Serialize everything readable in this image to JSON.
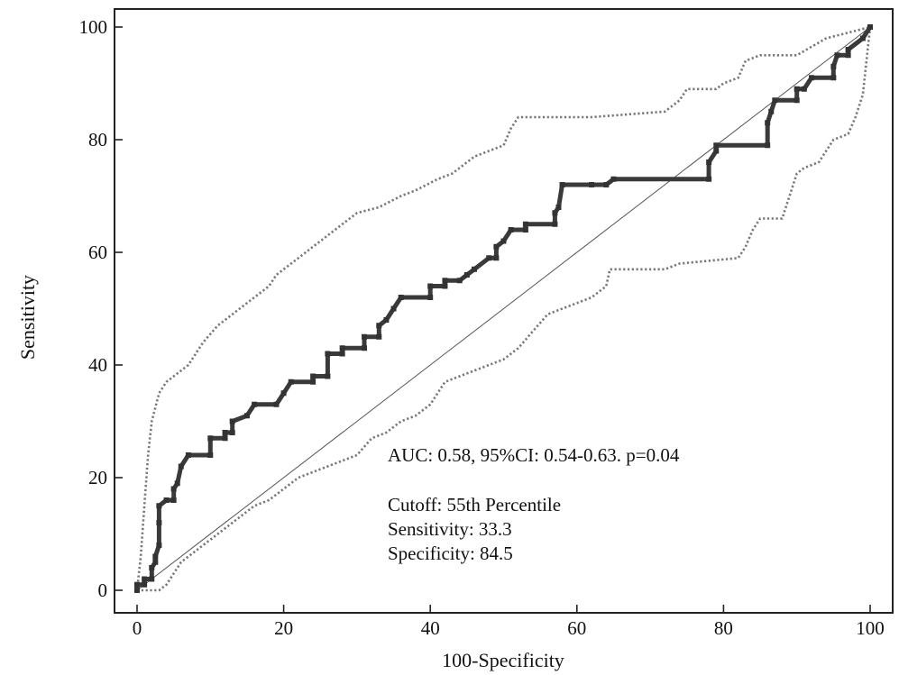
{
  "chart_data": {
    "type": "line",
    "title": "",
    "xlabel": "100-Specificity",
    "ylabel": "Sensitivity",
    "xlim": [
      0,
      100
    ],
    "ylim": [
      0,
      100
    ],
    "xticks": [
      "0",
      "20",
      "40",
      "60",
      "80",
      "100"
    ],
    "yticks": [
      "0",
      "20",
      "40",
      "60",
      "80",
      "100"
    ],
    "grid": false,
    "annotations": {
      "auc": "AUC: 0.58, 95%CI: 0.54-0.63. p=0.04",
      "cutoff": "Cutoff: 55th Percentile",
      "sensitivity": "Sensitivity: 33.3",
      "specificity": "Specificity: 84.5"
    },
    "series": [
      {
        "role": "roc",
        "style": "solid-thick",
        "points": [
          [
            0,
            0
          ],
          [
            0,
            1
          ],
          [
            1,
            1
          ],
          [
            1,
            2
          ],
          [
            2,
            2
          ],
          [
            2,
            4
          ],
          [
            2.5,
            5
          ],
          [
            2.5,
            6
          ],
          [
            3,
            8
          ],
          [
            3,
            12
          ],
          [
            3,
            15
          ],
          [
            4,
            16
          ],
          [
            5,
            16
          ],
          [
            5,
            18
          ],
          [
            5.5,
            19
          ],
          [
            6,
            22
          ],
          [
            7,
            24
          ],
          [
            10,
            24
          ],
          [
            10,
            27
          ],
          [
            12,
            27
          ],
          [
            12,
            28
          ],
          [
            13,
            28
          ],
          [
            13,
            30
          ],
          [
            15,
            31
          ],
          [
            16,
            33
          ],
          [
            19,
            33
          ],
          [
            20,
            35
          ],
          [
            21,
            37
          ],
          [
            24,
            37
          ],
          [
            24,
            38
          ],
          [
            26,
            38
          ],
          [
            26,
            42
          ],
          [
            28,
            42
          ],
          [
            28,
            43
          ],
          [
            31,
            43
          ],
          [
            31,
            45
          ],
          [
            33,
            45
          ],
          [
            33,
            47
          ],
          [
            34,
            48
          ],
          [
            35,
            50
          ],
          [
            36,
            52
          ],
          [
            40,
            52
          ],
          [
            40,
            54
          ],
          [
            42,
            54
          ],
          [
            42,
            55
          ],
          [
            44,
            55
          ],
          [
            45,
            56
          ],
          [
            46,
            57
          ],
          [
            48,
            59
          ],
          [
            49,
            59
          ],
          [
            49,
            61
          ],
          [
            50,
            62
          ],
          [
            51,
            64
          ],
          [
            53,
            64
          ],
          [
            53,
            65
          ],
          [
            57,
            65
          ],
          [
            57,
            67
          ],
          [
            57.5,
            68
          ],
          [
            58,
            72
          ],
          [
            62,
            72
          ],
          [
            64,
            72
          ],
          [
            65,
            73
          ],
          [
            78,
            73
          ],
          [
            78,
            76
          ],
          [
            79,
            78
          ],
          [
            79,
            79
          ],
          [
            86,
            79
          ],
          [
            86,
            83
          ],
          [
            86.5,
            85
          ],
          [
            87,
            87
          ],
          [
            90,
            87
          ],
          [
            90,
            89
          ],
          [
            91,
            89
          ],
          [
            92,
            91
          ],
          [
            95,
            91
          ],
          [
            95,
            93
          ],
          [
            95.5,
            95
          ],
          [
            97,
            95
          ],
          [
            97,
            96
          ],
          [
            99,
            98
          ],
          [
            100,
            100
          ]
        ]
      },
      {
        "role": "ci-upper",
        "style": "dotted",
        "points": [
          [
            0,
            0
          ],
          [
            0.5,
            6
          ],
          [
            1,
            15
          ],
          [
            1.5,
            24
          ],
          [
            2,
            30
          ],
          [
            3,
            35
          ],
          [
            4,
            37
          ],
          [
            5,
            38
          ],
          [
            7,
            40
          ],
          [
            9,
            44
          ],
          [
            11,
            47
          ],
          [
            13,
            49
          ],
          [
            14,
            50
          ],
          [
            16,
            52
          ],
          [
            18,
            54
          ],
          [
            19,
            56
          ],
          [
            20,
            57
          ],
          [
            22,
            59
          ],
          [
            24,
            61
          ],
          [
            26,
            63
          ],
          [
            28,
            65
          ],
          [
            30,
            67
          ],
          [
            33,
            68
          ],
          [
            36,
            70
          ],
          [
            38,
            71
          ],
          [
            41,
            73
          ],
          [
            43,
            74
          ],
          [
            45,
            76
          ],
          [
            46,
            77
          ],
          [
            48,
            78
          ],
          [
            50,
            79
          ],
          [
            51,
            82
          ],
          [
            52,
            84
          ],
          [
            58,
            84
          ],
          [
            60,
            84
          ],
          [
            62,
            84
          ],
          [
            72,
            85
          ],
          [
            73,
            86
          ],
          [
            74,
            87
          ],
          [
            75,
            89
          ],
          [
            79,
            89
          ],
          [
            80,
            90
          ],
          [
            82,
            91
          ],
          [
            83,
            94
          ],
          [
            85,
            95
          ],
          [
            90,
            95
          ],
          [
            94,
            98
          ],
          [
            97,
            99
          ],
          [
            100,
            100
          ]
        ]
      },
      {
        "role": "ci-lower",
        "style": "dotted",
        "points": [
          [
            0,
            0
          ],
          [
            1,
            0
          ],
          [
            3,
            0
          ],
          [
            4,
            1
          ],
          [
            5,
            3
          ],
          [
            6,
            5
          ],
          [
            7,
            6
          ],
          [
            8,
            7
          ],
          [
            10,
            9
          ],
          [
            12,
            11
          ],
          [
            14,
            13
          ],
          [
            16,
            15
          ],
          [
            18,
            16
          ],
          [
            20,
            18
          ],
          [
            22,
            20
          ],
          [
            24,
            21
          ],
          [
            26,
            22
          ],
          [
            28,
            23
          ],
          [
            30,
            24
          ],
          [
            32,
            27
          ],
          [
            34,
            28
          ],
          [
            36,
            30
          ],
          [
            38,
            31
          ],
          [
            40,
            33
          ],
          [
            41,
            35
          ],
          [
            42,
            37
          ],
          [
            44,
            38
          ],
          [
            46,
            39
          ],
          [
            48,
            40
          ],
          [
            50,
            41
          ],
          [
            52,
            43
          ],
          [
            54,
            46
          ],
          [
            56,
            49
          ],
          [
            58,
            50
          ],
          [
            60,
            51
          ],
          [
            62,
            52
          ],
          [
            64,
            54
          ],
          [
            64.5,
            57
          ],
          [
            66,
            57
          ],
          [
            72,
            57
          ],
          [
            74,
            58
          ],
          [
            82,
            59
          ],
          [
            83,
            61
          ],
          [
            84,
            64
          ],
          [
            85,
            66
          ],
          [
            88,
            66
          ],
          [
            89,
            70
          ],
          [
            90,
            74
          ],
          [
            91,
            75
          ],
          [
            93,
            76
          ],
          [
            94,
            78
          ],
          [
            95,
            80
          ],
          [
            97,
            81
          ],
          [
            98,
            84
          ],
          [
            99,
            88
          ],
          [
            100,
            100
          ]
        ]
      },
      {
        "role": "reference",
        "style": "thin",
        "points": [
          [
            0,
            0
          ],
          [
            100,
            100
          ]
        ]
      }
    ]
  }
}
